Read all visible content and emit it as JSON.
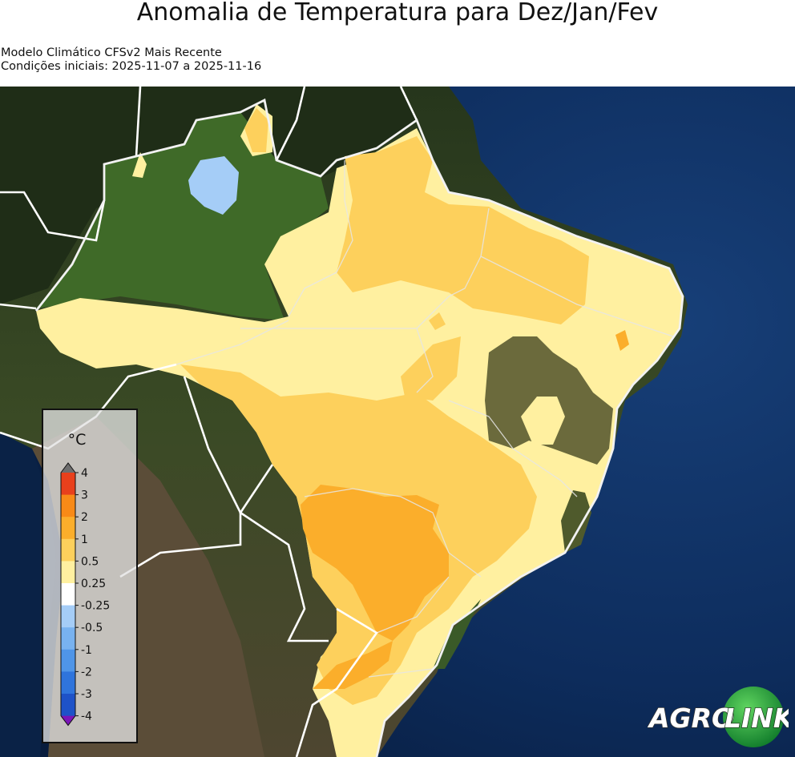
{
  "title": "Anomalia de Temperatura para Dez/Jan/Fev",
  "subtitle": {
    "line1": "Modelo Climático CFSv2 Mais Recente",
    "line2": "Condições iniciais: 2025-11-07 a 2025-11-16"
  },
  "legend": {
    "unit": "°C",
    "labels": [
      "4",
      "3",
      "2",
      "1",
      "0.5",
      "0.25",
      "-0.25",
      "-0.5",
      "-1",
      "-2",
      "-3",
      "-4"
    ],
    "colors": [
      "#e8401c",
      "#f88a17",
      "#fbae2b",
      "#fdd05c",
      "#fff0a0",
      "#ffffff",
      "#a5cdf7",
      "#78b2f0",
      "#4f95e8",
      "#2f74dc",
      "#1e52c8"
    ],
    "over_color": "#6e6e6e",
    "under_color": "#7b15b8"
  },
  "colors": {
    "anom_025_05": "#fff0a0",
    "anom_05_1": "#fdd05c",
    "anom_1_2": "#fbae2b",
    "anom_neg_025_05": "#a5cdf7",
    "ocean": "#0c2a55",
    "land": "#3d4a2a"
  },
  "logo": {
    "part1": "AGRO",
    "part2": "LINK"
  }
}
